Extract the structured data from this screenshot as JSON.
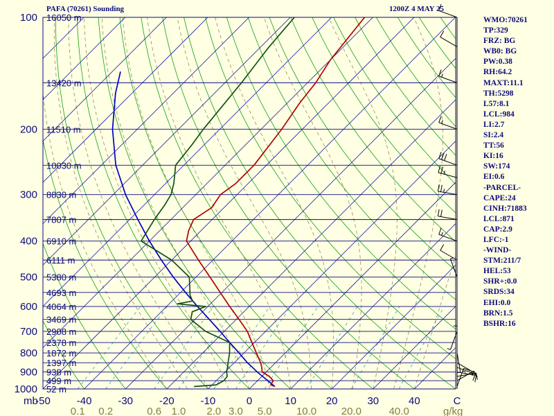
{
  "header": {
    "title": "PAFA (70261) Sounding",
    "time": "1200Z  4 MAY 25"
  },
  "indices": [
    "WMO:70261",
    "TP:329",
    "FRZ: BG",
    "WB0: BG",
    "PW:0.38",
    "RH:64.2",
    "MAXT:11.1",
    "TH:5298",
    "L57:8.1",
    "LCL:984",
    "LI:2.7",
    "SI:2.4",
    "TT:56",
    "KI:16",
    "SW:174",
    "EI:0.6",
    "-PARCEL-",
    "CAPE:24",
    "CINH:71883",
    "LCL:871",
    "CAP:2.9",
    "LFC:-1",
    "-WIND-",
    "STM:211/7",
    "HEL:53",
    "SHR+:0.0",
    "SRDS:34",
    "EHI:0.0",
    "BRN:1.5",
    "BSHR:16"
  ],
  "colors": {
    "background": "#ffffe4",
    "isobar": "#0b0b7a",
    "isotherm": "#1a1aa6",
    "dry_adiabat": "#10a010",
    "moist_adiabat": "#80804a",
    "mixing_ratio": "#2aa0c8",
    "temperature": "#b00000",
    "dewpoint": "#105010",
    "parcel": "#0000c0",
    "wind": "#000000"
  },
  "chart_data": {
    "type": "line",
    "title": "PAFA (70261) Sounding",
    "subtitle": "1200Z  4 MAY 25",
    "xlabel": "",
    "ylabel": "mb",
    "x_units_right": "C",
    "mixing_ratio_units": "g/kg",
    "xlim": [
      -50,
      50
    ],
    "ylim_mb": [
      1000,
      100
    ],
    "log_pressure": true,
    "skew": true,
    "pressure_ticks": [
      1000,
      900,
      800,
      700,
      600,
      500,
      400,
      300,
      200,
      100
    ],
    "temperature_ticks": [
      -50,
      -40,
      -30,
      -20,
      -10,
      0,
      10,
      20,
      30,
      40
    ],
    "mixing_ratio_ticks": [
      "0.1",
      "0.2",
      "0.6",
      "1.0",
      "2.0",
      "3.0",
      "5.0",
      "10.0",
      "20.0",
      "40.0"
    ],
    "height_labels": [
      {
        "p": 1000,
        "label": "52 m"
      },
      {
        "p": 950,
        "label": "499 m"
      },
      {
        "p": 900,
        "label": "938 m"
      },
      {
        "p": 850,
        "label": "1397 m"
      },
      {
        "p": 800,
        "label": "1872 m"
      },
      {
        "p": 750,
        "label": "2378 m"
      },
      {
        "p": 700,
        "label": "2908 m"
      },
      {
        "p": 650,
        "label": "3469 m"
      },
      {
        "p": 600,
        "label": "4064 m"
      },
      {
        "p": 550,
        "label": "4693 m"
      },
      {
        "p": 500,
        "label": "5380 m"
      },
      {
        "p": 450,
        "label": "6111 m"
      },
      {
        "p": 400,
        "label": "6910 m"
      },
      {
        "p": 350,
        "label": "7807 m"
      },
      {
        "p": 300,
        "label": "8830 m"
      },
      {
        "p": 250,
        "label": "10030 m"
      },
      {
        "p": 200,
        "label": "11510 m"
      },
      {
        "p": 150,
        "label": "13420 m"
      },
      {
        "p": 100,
        "label": "16050 m"
      }
    ],
    "series": [
      {
        "role": "temperature",
        "points": [
          [
            985,
            5.6
          ],
          [
            975,
            4.2
          ],
          [
            950,
            3.8
          ],
          [
            925,
            1.8
          ],
          [
            900,
            -1.0
          ],
          [
            875,
            -2.2
          ],
          [
            850,
            -3.6
          ],
          [
            800,
            -7.0
          ],
          [
            750,
            -10.6
          ],
          [
            700,
            -14.4
          ],
          [
            650,
            -19.3
          ],
          [
            600,
            -24.7
          ],
          [
            550,
            -30.4
          ],
          [
            500,
            -36.6
          ],
          [
            450,
            -43.5
          ],
          [
            400,
            -51.0
          ],
          [
            375,
            -53.0
          ],
          [
            350,
            -54.5
          ],
          [
            325,
            -53.0
          ],
          [
            300,
            -54.0
          ],
          [
            280,
            -53.0
          ],
          [
            250,
            -53.0
          ],
          [
            200,
            -55.0
          ],
          [
            170,
            -57.0
          ],
          [
            150,
            -58.0
          ],
          [
            130,
            -60.0
          ],
          [
            100,
            -62.0
          ]
        ]
      },
      {
        "role": "dewpoint",
        "points": [
          [
            985,
            -14.0
          ],
          [
            975,
            -9.0
          ],
          [
            950,
            -8.2
          ],
          [
            925,
            -8.4
          ],
          [
            900,
            -9.6
          ],
          [
            875,
            -10.5
          ],
          [
            850,
            -11.5
          ],
          [
            800,
            -13.5
          ],
          [
            750,
            -16.0
          ],
          [
            700,
            -24.5
          ],
          [
            650,
            -31.0
          ],
          [
            620,
            -32.5
          ],
          [
            600,
            -30.5
          ],
          [
            590,
            -38.0
          ],
          [
            580,
            -35.0
          ],
          [
            560,
            -37.0
          ],
          [
            500,
            -41.6
          ],
          [
            450,
            -50.0
          ],
          [
            400,
            -62.0
          ],
          [
            350,
            -64.0
          ],
          [
            320,
            -65.0
          ],
          [
            300,
            -66.0
          ],
          [
            280,
            -68.0
          ],
          [
            250,
            -72.0
          ],
          [
            220,
            -73.0
          ],
          [
            200,
            -74.0
          ],
          [
            150,
            -76.0
          ],
          [
            120,
            -78.0
          ],
          [
            100,
            -79.0
          ]
        ]
      },
      {
        "role": "parcel",
        "points": [
          [
            985,
            5.6
          ],
          [
            950,
            2.5
          ],
          [
            900,
            -2.2
          ],
          [
            871,
            -4.8
          ],
          [
            850,
            -6.8
          ],
          [
            800,
            -11.2
          ],
          [
            750,
            -16.0
          ],
          [
            700,
            -21.0
          ],
          [
            650,
            -26.5
          ],
          [
            600,
            -32.5
          ],
          [
            550,
            -38.8
          ],
          [
            500,
            -45.5
          ],
          [
            450,
            -52.5
          ],
          [
            400,
            -60.0
          ],
          [
            350,
            -68.0
          ],
          [
            300,
            -77.0
          ],
          [
            250,
            -86.5
          ],
          [
            200,
            -96.0
          ],
          [
            160,
            -104.0
          ],
          [
            140,
            -108.0
          ]
        ]
      }
    ],
    "winds": [
      {
        "p": 985,
        "dir": 20,
        "spd": 15
      },
      {
        "p": 950,
        "dir": 60,
        "spd": 15
      },
      {
        "p": 925,
        "dir": 80,
        "spd": 10
      },
      {
        "p": 900,
        "dir": 100,
        "spd": 10
      },
      {
        "p": 875,
        "dir": 110,
        "spd": 10
      },
      {
        "p": 850,
        "dir": 120,
        "spd": 5
      },
      {
        "p": 800,
        "dir": 170,
        "spd": 5
      },
      {
        "p": 700,
        "dir": 200,
        "spd": 5
      },
      {
        "p": 600,
        "dir": 180,
        "spd": 5
      },
      {
        "p": 500,
        "dir": 340,
        "spd": 5
      },
      {
        "p": 450,
        "dir": 300,
        "spd": 10
      },
      {
        "p": 400,
        "dir": 290,
        "spd": 15
      },
      {
        "p": 350,
        "dir": 280,
        "spd": 20
      },
      {
        "p": 300,
        "dir": 280,
        "spd": 25
      },
      {
        "p": 270,
        "dir": 285,
        "spd": 25
      },
      {
        "p": 250,
        "dir": 290,
        "spd": 30
      },
      {
        "p": 200,
        "dir": 290,
        "spd": 15
      },
      {
        "p": 150,
        "dir": 290,
        "spd": 15
      },
      {
        "p": 120,
        "dir": 300,
        "spd": 10
      },
      {
        "p": 100,
        "dir": 290,
        "spd": 10
      }
    ]
  }
}
